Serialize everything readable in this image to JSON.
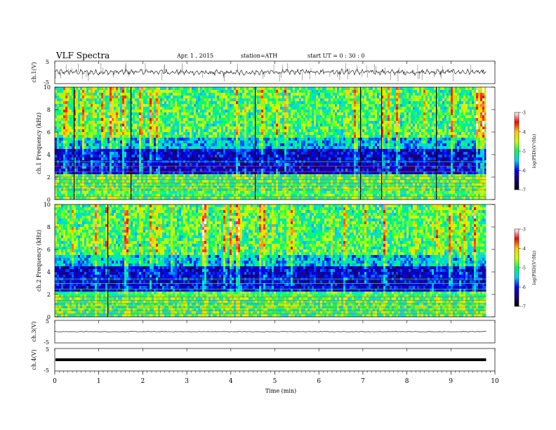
{
  "header": {
    "title": "VLF  Spectra",
    "date": "Apr. 1 , 2015",
    "station": "station=ATH",
    "start_ut": "start  UT =   0 : 30 : 0"
  },
  "colorbar": {
    "label": "log(PSD)(V²/Hz)",
    "ticks": [
      "-3",
      "-4",
      "-5",
      "-6",
      "-7"
    ],
    "range": [
      -7,
      -3
    ],
    "stops": [
      "#000000",
      "#1a0070",
      "#0000ff",
      "#00d0ff",
      "#00ff60",
      "#ccff00",
      "#ffcc00",
      "#ff0000",
      "#ffffff"
    ]
  },
  "chart_data": [
    {
      "type": "line",
      "panel": "ch1-waveform",
      "ylabel": "ch.1(V)",
      "ylim": [
        -5,
        5
      ],
      "yticks": [
        "5",
        "-5"
      ],
      "x": [
        0,
        1,
        2,
        3,
        4,
        5,
        6,
        7,
        8,
        9,
        9.8
      ],
      "series": [
        {
          "values": [
            0.2,
            0.0,
            0.3,
            0.0,
            -0.2,
            0.1,
            0.4,
            0.2,
            0.0,
            0.3,
            0.0
          ]
        }
      ]
    },
    {
      "type": "heatmap",
      "panel": "ch1-spectrogram",
      "ylabel": "ch.1  Frequency  (kHz)",
      "ylim": [
        0,
        10
      ],
      "yticks": [
        "0",
        "2",
        "4",
        "6",
        "8",
        "10"
      ],
      "xlim": [
        0,
        9.8
      ],
      "zlabel": "log(PSD)(V²/Hz)",
      "zlim": [
        -7,
        -3
      ]
    },
    {
      "type": "heatmap",
      "panel": "ch2-spectrogram",
      "ylabel": "ch.2  Frequency  (kHz)",
      "ylim": [
        0,
        10
      ],
      "yticks": [
        "0",
        "2",
        "4",
        "6",
        "8",
        "10"
      ],
      "xlim": [
        0,
        9.8
      ],
      "zlabel": "log(PSD)(V²/Hz)",
      "zlim": [
        -7,
        -3
      ]
    },
    {
      "type": "line",
      "panel": "ch3-waveform",
      "ylabel": "ch.3(V)",
      "ylim": [
        -5,
        5
      ],
      "yticks": [
        "5",
        "-5"
      ],
      "x": [
        0,
        9.8
      ],
      "series": [
        {
          "values": [
            0.0,
            0.0
          ]
        }
      ]
    },
    {
      "type": "line",
      "panel": "ch4-waveform",
      "ylabel": "ch.4(V)",
      "ylim": [
        -5,
        5
      ],
      "yticks": [
        "5",
        "-5"
      ],
      "x": [
        0,
        9.8
      ],
      "series": [
        {
          "values": [
            0.0,
            0.0
          ]
        }
      ]
    }
  ],
  "xaxis": {
    "label": "Time  (min)",
    "ticks": [
      "0",
      "1",
      "2",
      "3",
      "4",
      "5",
      "6",
      "7",
      "8",
      "9",
      "10"
    ],
    "range": [
      0,
      10
    ],
    "data_end": 9.8
  }
}
